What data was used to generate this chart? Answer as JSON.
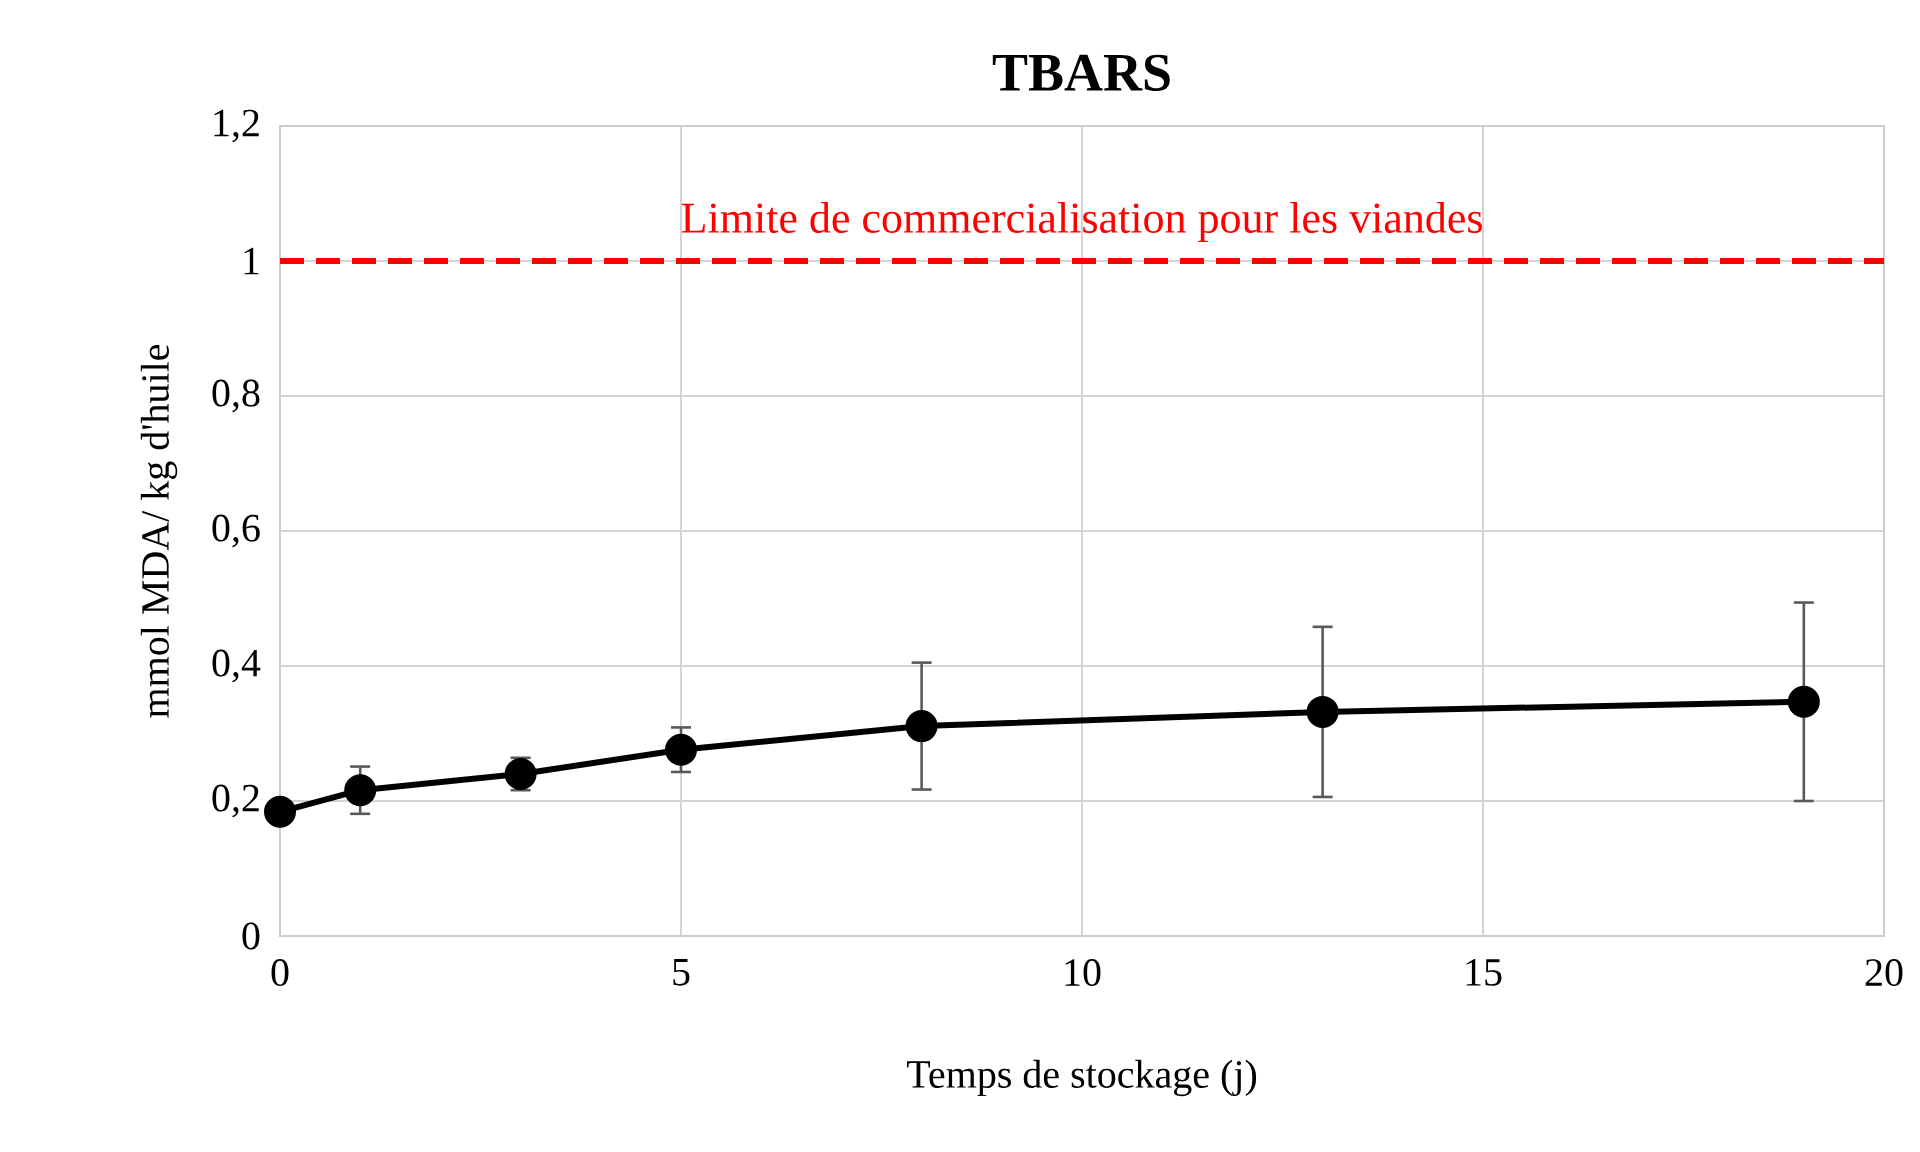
{
  "chart_data": {
    "type": "line",
    "title": "TBARS",
    "xlabel": "Temps de stockage (j)",
    "ylabel": "mmol MDA/ kg d'huile",
    "x": [
      0,
      1,
      3,
      5,
      8,
      13,
      19
    ],
    "series": [
      {
        "color": "#000000",
        "values": [
          0.184,
          0.216,
          0.24,
          0.276,
          0.311,
          0.332,
          0.347
        ],
        "errors": [
          null,
          0.035,
          0.024,
          0.033,
          0.094,
          0.126,
          0.147
        ]
      }
    ],
    "xlim": [
      0,
      20
    ],
    "xticks": [
      0,
      5,
      10,
      15,
      20
    ],
    "ylim": [
      0,
      1.2
    ],
    "yticks": [
      {
        "value": 0,
        "label": "0"
      },
      {
        "value": 0.2,
        "label": "0,2"
      },
      {
        "value": 0.4,
        "label": "0,4"
      },
      {
        "value": 0.6,
        "label": "0,6"
      },
      {
        "value": 0.8,
        "label": "0,8"
      },
      {
        "value": 1,
        "label": "1"
      },
      {
        "value": 1.2,
        "label": "1,2"
      }
    ],
    "grid": true,
    "marker": "circle",
    "line_style": "solid",
    "ref_lines": [
      {
        "axis": "y",
        "value": 1,
        "label": "Limite de commercialisation pour les viandes",
        "color": "#ff0000",
        "line_style": "dashed"
      }
    ]
  }
}
